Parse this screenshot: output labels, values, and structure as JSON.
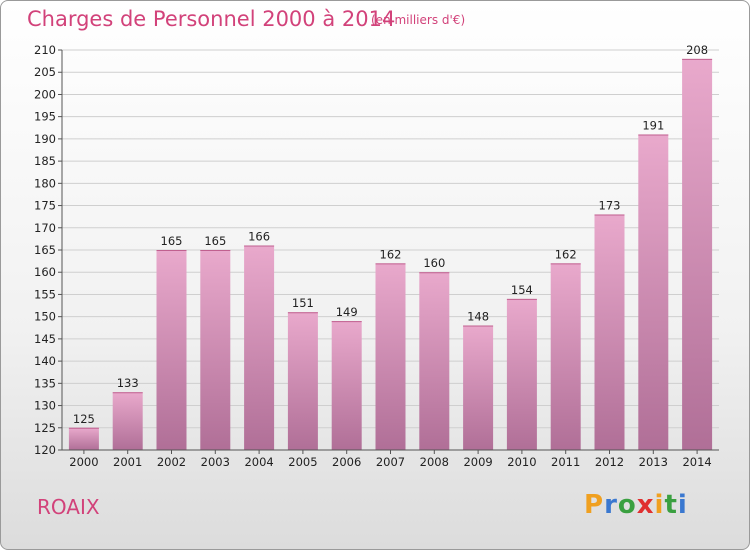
{
  "title": "Charges de Personnel 2000 à 2014",
  "subtitle": "(en milliers d'€)",
  "commune": "ROAIX",
  "logo": {
    "letters": [
      "P",
      "r",
      "o",
      "x",
      "i",
      "t",
      "i"
    ],
    "colors": [
      "#f0a020",
      "#3a78d0",
      "#3aa040",
      "#e03030",
      "#f0a020",
      "#3aa040",
      "#3a78d0"
    ]
  },
  "colors": {
    "bar_top": "#e9a9cc",
    "bar_bottom": "#b06f97",
    "accent": "#d2427a",
    "grid": "#cfcfcf"
  },
  "chart_data": {
    "type": "bar",
    "categories": [
      "2000",
      "2001",
      "2002",
      "2003",
      "2004",
      "2005",
      "2006",
      "2007",
      "2008",
      "2009",
      "2010",
      "2011",
      "2012",
      "2013",
      "2014"
    ],
    "values": [
      125,
      133,
      165,
      165,
      166,
      151,
      149,
      162,
      160,
      148,
      154,
      162,
      173,
      191,
      208
    ],
    "ylim": [
      120,
      210
    ],
    "yticks": [
      120,
      125,
      130,
      135,
      140,
      145,
      150,
      155,
      160,
      165,
      170,
      175,
      180,
      185,
      190,
      195,
      200,
      205,
      210
    ],
    "grid": true,
    "data_labels": true
  }
}
